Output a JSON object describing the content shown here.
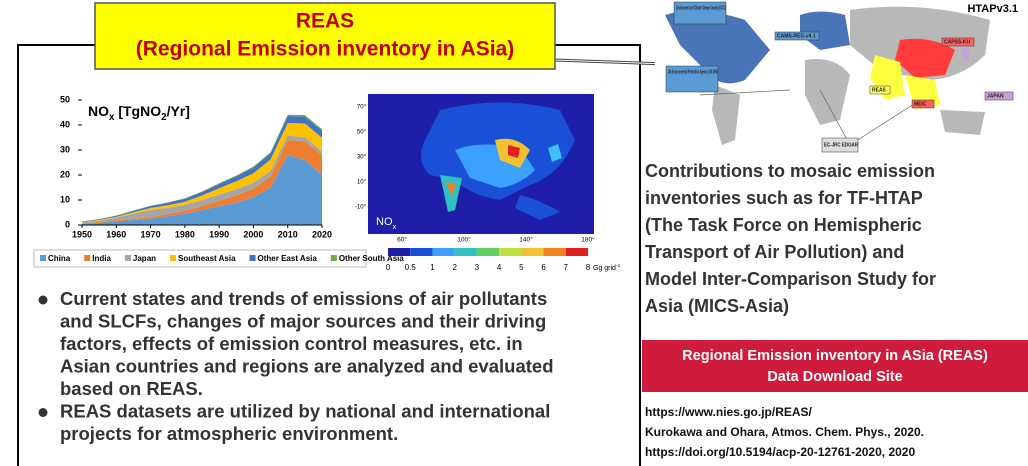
{
  "header": {
    "line1": "REAS",
    "line2": "(Regional Emission inventory in ASia)"
  },
  "chart_data": {
    "type": "area",
    "title_parts": [
      {
        "text": "NO"
      },
      {
        "text": "x",
        "sub": true
      },
      {
        "text": " [TgNO"
      },
      {
        "text": "2",
        "sub": true
      },
      {
        "text": "/Yr]"
      }
    ],
    "x": [
      1950,
      1955,
      1960,
      1965,
      1970,
      1975,
      1980,
      1985,
      1990,
      1995,
      2000,
      2005,
      2010,
      2015,
      2020
    ],
    "series": [
      {
        "name": "China",
        "color": "#5b9bd5",
        "values": [
          0.5,
          0.8,
          1.5,
          2,
          2.5,
          3.5,
          4.5,
          6,
          7.5,
          9,
          11,
          15,
          28,
          26,
          20
        ]
      },
      {
        "name": "India",
        "color": "#ed7d31",
        "values": [
          0.2,
          0.3,
          0.4,
          0.5,
          0.7,
          0.9,
          1.2,
          1.6,
          2.2,
          2.8,
          3.5,
          4.5,
          6,
          7.5,
          8
        ]
      },
      {
        "name": "Japan",
        "color": "#a5a5a5",
        "values": [
          0.3,
          0.6,
          1,
          2,
          2.8,
          2.5,
          2.3,
          2.4,
          2.5,
          2.5,
          2.4,
          2.2,
          1.8,
          1.6,
          1.4
        ]
      },
      {
        "name": "Southeast Asia",
        "color": "#ffc000",
        "values": [
          0.2,
          0.3,
          0.4,
          0.6,
          0.8,
          1,
          1.3,
          1.8,
          2.5,
          3.2,
          3.8,
          4.5,
          5,
          5.5,
          5.5
        ]
      },
      {
        "name": "Other East Asia",
        "color": "#4472c4",
        "values": [
          0.2,
          0.3,
          0.4,
          0.6,
          0.8,
          1,
          1.2,
          1.4,
          1.7,
          2,
          2.3,
          2.5,
          2.8,
          2.8,
          2.8
        ]
      },
      {
        "name": "Other South Asia",
        "color": "#70ad47",
        "values": [
          0.05,
          0.05,
          0.1,
          0.1,
          0.1,
          0.15,
          0.2,
          0.2,
          0.3,
          0.3,
          0.4,
          0.4,
          0.5,
          0.6,
          0.6
        ]
      }
    ],
    "xlim": [
      1950,
      2020
    ],
    "xticks": [
      1950,
      1960,
      1970,
      1980,
      1990,
      2000,
      2010,
      2020
    ],
    "ylim": [
      0,
      50
    ],
    "yticks": [
      0,
      10,
      20,
      30,
      40,
      50
    ]
  },
  "map": {
    "lat_labels": [
      "70°",
      "50°",
      "30°",
      "10°",
      "-10°"
    ],
    "lon_labels": [
      "60°",
      "100°",
      "140°",
      "180°"
    ],
    "species": [
      {
        "text": "NO"
      },
      {
        "text": "x",
        "sub": true
      }
    ],
    "colorbar_labels": [
      "0",
      "0.5",
      "1",
      "2",
      "3",
      "4",
      "5",
      "6",
      "7",
      "8"
    ],
    "colorbar_unit": [
      {
        "text": "Gg grid"
      },
      {
        "text": "-1",
        "sup": true
      }
    ]
  },
  "bullets": [
    [
      "Current states and trends of emissions of air pollutants",
      "and SLCFs, changes of major sources and their driving",
      "factors, effects of emission control measures, etc. in",
      "Asian countries and regions are analyzed and evaluated",
      "based on REAS."
    ],
    [
      "REAS datasets are utilized by national and international",
      "projects for atmospheric environment."
    ]
  ],
  "world_map": {
    "title": "HTAPv3.1",
    "labels": [
      "Environment and Climate Change Canada (ECCC)",
      "CAMS-REG-v4.1",
      "US Environmental Protection Agency (US EPA)",
      "CAPSS-KU",
      "JAPAN",
      "REAS",
      "MEIC",
      "EC-JRC EDGAR"
    ]
  },
  "contributions": [
    "Contributions to mosaic emission",
    "inventories such as for TF-HTAP",
    "(The Task Force on Hemispheric",
    "Transport of Air Pollution) and",
    "Model Inter-Comparison Study for",
    "Asia (MICS-Asia)"
  ],
  "download": {
    "line1": "Regional Emission inventory in ASia (REAS)",
    "line2": "Data Download Site"
  },
  "references": [
    "https://www.nies.go.jp/REAS/",
    "Kurokawa and Ohara, Atmos. Chem. Phys., 2020.",
    "https://doi.org/10.5194/acp-20-12761-2020, 2020"
  ]
}
